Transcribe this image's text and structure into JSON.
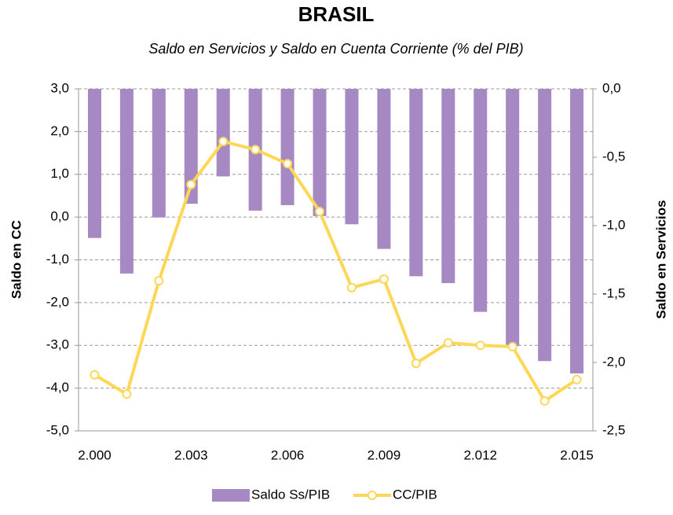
{
  "chart_data": {
    "type": "bar_line",
    "title": "BRASIL",
    "subtitle": "Saldo en Servicios y Saldo en Cuenta Corriente (% del PIB)",
    "y_label": "Saldo en CC",
    "y2_label": "Saldo en Servicios",
    "categories": [
      "2.000",
      null,
      null,
      "2.003",
      null,
      null,
      "2.006",
      null,
      null,
      "2.009",
      null,
      null,
      "2.012",
      null,
      null,
      "2.015"
    ],
    "series": [
      {
        "name": "Saldo Ss/PIB",
        "type": "bar",
        "axis": "y2",
        "color": "#a688c2",
        "values": [
          -1.09,
          -1.35,
          -0.94,
          -0.84,
          -0.64,
          -0.89,
          -0.85,
          -0.93,
          -0.99,
          -1.17,
          -1.37,
          -1.42,
          -1.63,
          -1.88,
          -1.99,
          -2.08
        ]
      },
      {
        "name": "CC/PIB",
        "type": "line",
        "axis": "y",
        "color": "#ffd757",
        "values": [
          -3.69,
          -4.14,
          -1.49,
          0.76,
          1.77,
          1.58,
          1.25,
          0.13,
          -1.65,
          -1.45,
          -3.42,
          -2.94,
          -3.0,
          -3.03,
          -4.3,
          -3.8
        ]
      }
    ],
    "ylim": [
      -5,
      3
    ],
    "yticks": [
      {
        "value": -5,
        "label": "-5,0"
      },
      {
        "value": -4,
        "label": "-4,0"
      },
      {
        "value": -3,
        "label": "-3,0"
      },
      {
        "value": -2,
        "label": "-2,0"
      },
      {
        "value": -1,
        "label": "-1,0"
      },
      {
        "value": 0,
        "label": "0,0"
      },
      {
        "value": 1,
        "label": "1,0"
      },
      {
        "value": 2,
        "label": "2,0"
      },
      {
        "value": 3,
        "label": "3,0"
      }
    ],
    "y2lim": [
      -2.5,
      0
    ],
    "y2ticks": [
      {
        "value": -2.5,
        "label": "-2,5"
      },
      {
        "value": -2,
        "label": "-2,0"
      },
      {
        "value": -1.5,
        "label": "-1,5"
      },
      {
        "value": -1,
        "label": "-1,0"
      },
      {
        "value": -0.5,
        "label": "-0,5"
      },
      {
        "value": 0,
        "label": "0,0"
      }
    ],
    "grid": true,
    "legend": "bottom"
  }
}
